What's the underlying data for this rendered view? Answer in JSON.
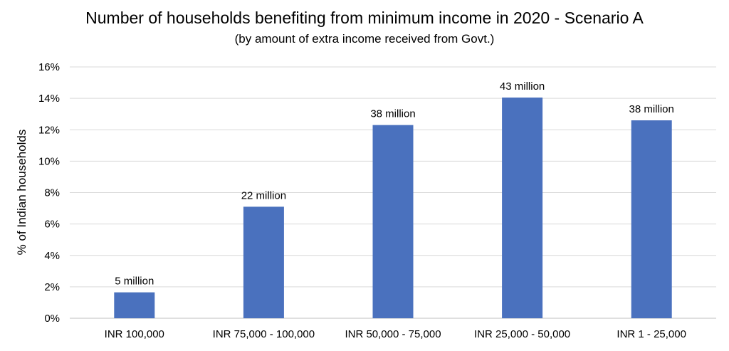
{
  "chart_data": {
    "type": "bar",
    "title": "Number of households benefiting from minimum income in 2020 - Scenario A",
    "subtitle": "(by amount of extra income received from Govt.)",
    "xlabel": "",
    "ylabel": "% of Indian households",
    "categories": [
      "INR 100,000",
      "INR 75,000 - 100,000",
      "INR 50,000 - 75,000",
      "INR 25,000 - 50,000",
      "INR 1 - 25,000"
    ],
    "values": [
      1.65,
      7.1,
      12.3,
      14.05,
      12.6
    ],
    "data_labels": [
      "5 million",
      "22 million",
      "38 million",
      "43 million",
      "38 million"
    ],
    "ylim": [
      0,
      16
    ],
    "yticks": [
      0,
      2,
      4,
      6,
      8,
      10,
      12,
      14,
      16
    ],
    "ytick_labels": [
      "0%",
      "2%",
      "4%",
      "6%",
      "8%",
      "10%",
      "12%",
      "14%",
      "16%"
    ],
    "grid": true,
    "legend": "none",
    "bar_color": "#4a71be"
  }
}
